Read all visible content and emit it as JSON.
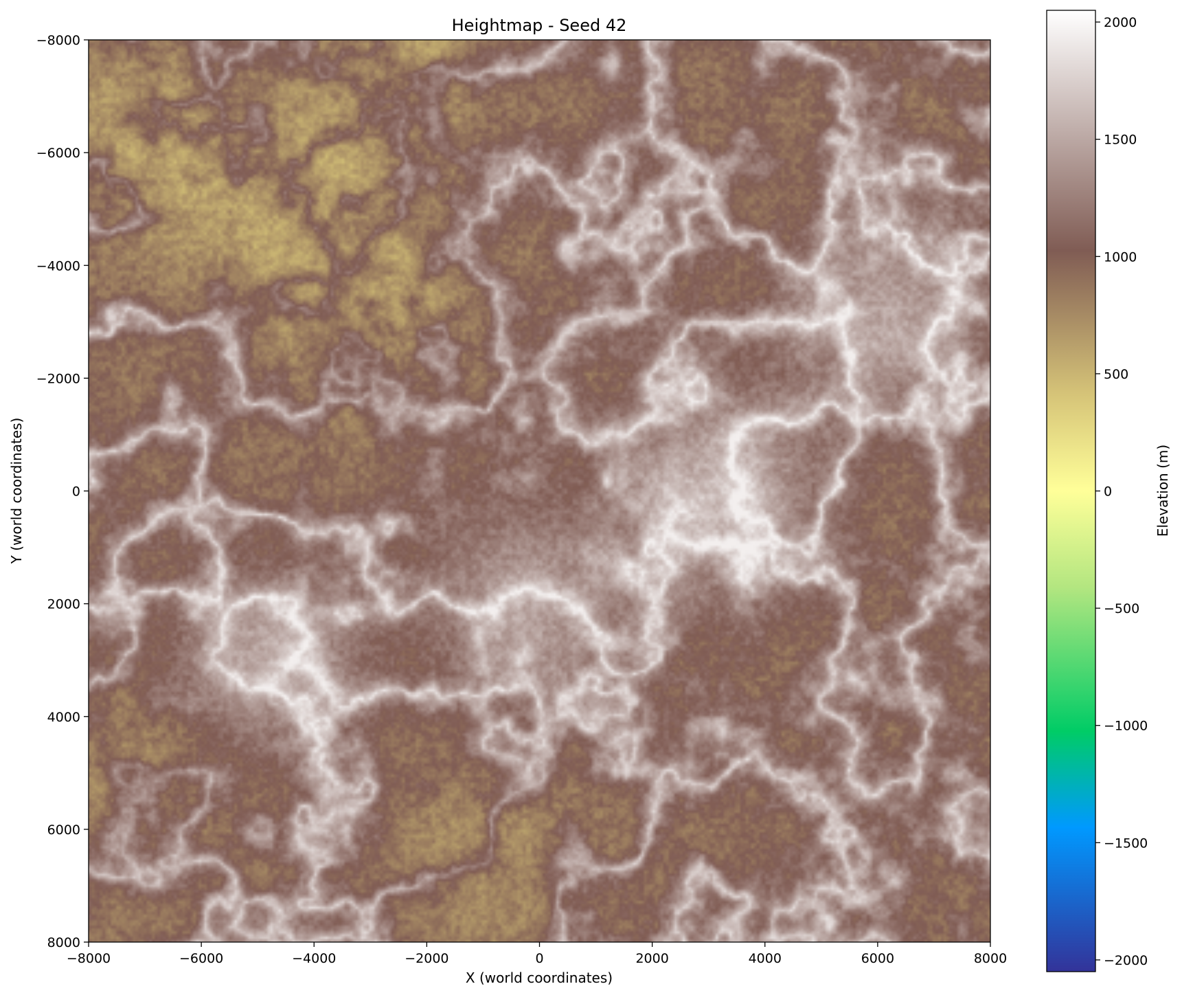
{
  "chart_data": {
    "type": "heatmap",
    "title": "Heightmap - Seed 42",
    "xlabel": "X (world coordinates)",
    "ylabel": "Y (world coordinates)",
    "xlim": [
      -8000,
      8000
    ],
    "ylim": [
      -8000,
      8000
    ],
    "y_axis_inverted": true,
    "xticks": [
      -8000,
      -6000,
      -4000,
      -2000,
      0,
      2000,
      4000,
      6000,
      8000
    ],
    "yticks": [
      -8000,
      -6000,
      -4000,
      -2000,
      0,
      2000,
      4000,
      6000,
      8000
    ],
    "xtick_labels": [
      "−8000",
      "−6000",
      "−4000",
      "−2000",
      "0",
      "2000",
      "4000",
      "6000",
      "8000"
    ],
    "ytick_labels": [
      "−8000",
      "−6000",
      "−4000",
      "−2000",
      "0",
      "2000",
      "4000",
      "6000",
      "8000"
    ],
    "grid": false,
    "colormap": "terrain",
    "colorbar": {
      "label": "Elevation (m)",
      "range": [
        -2050,
        2050
      ],
      "ticks": [
        -2000,
        -1500,
        -1000,
        -500,
        0,
        500,
        1000,
        1500,
        2000
      ],
      "tick_labels": [
        "−2000",
        "−1500",
        "−1000",
        "−500",
        "0",
        "500",
        "1000",
        "1500",
        "2000"
      ],
      "stops": [
        {
          "value": -2050,
          "color": "#333399"
        },
        {
          "value": -1435,
          "color": "#0099ff"
        },
        {
          "value": -1025,
          "color": "#00cc66"
        },
        {
          "value": -410,
          "color": "#b3e680"
        },
        {
          "value": 0,
          "color": "#ffff99"
        },
        {
          "value": 410,
          "color": "#d6c478"
        },
        {
          "value": 1025,
          "color": "#805c54"
        },
        {
          "value": 2050,
          "color": "#ffffff"
        }
      ]
    },
    "elevation_range_observed": [
      -50,
      1800
    ],
    "features": [
      {
        "label": "lowland plateau NW",
        "x": -6800,
        "y": -6200,
        "value": 400
      },
      {
        "label": "lowland plateau N",
        "x": -4300,
        "y": -4900,
        "value": 450
      },
      {
        "label": "lowland plateau N-center",
        "x": -2800,
        "y": -3300,
        "value": 400
      },
      {
        "label": "lowland plateau top",
        "x": -2900,
        "y": -7600,
        "value": 350
      },
      {
        "label": "lowland basin S",
        "x": -1000,
        "y": 6600,
        "value": 650
      },
      {
        "label": "lowland basin SW",
        "x": -7100,
        "y": 4900,
        "value": 650
      },
      {
        "label": "high plain E",
        "x": 3200,
        "y": 0,
        "value": 1800
      },
      {
        "label": "high ridge NE",
        "x": 6200,
        "y": -3100,
        "value": 1650
      },
      {
        "label": "high ridge center",
        "x": -300,
        "y": 1900,
        "value": 1600
      },
      {
        "label": "high ridge SW",
        "x": -4900,
        "y": 3000,
        "value": 1650
      }
    ]
  }
}
